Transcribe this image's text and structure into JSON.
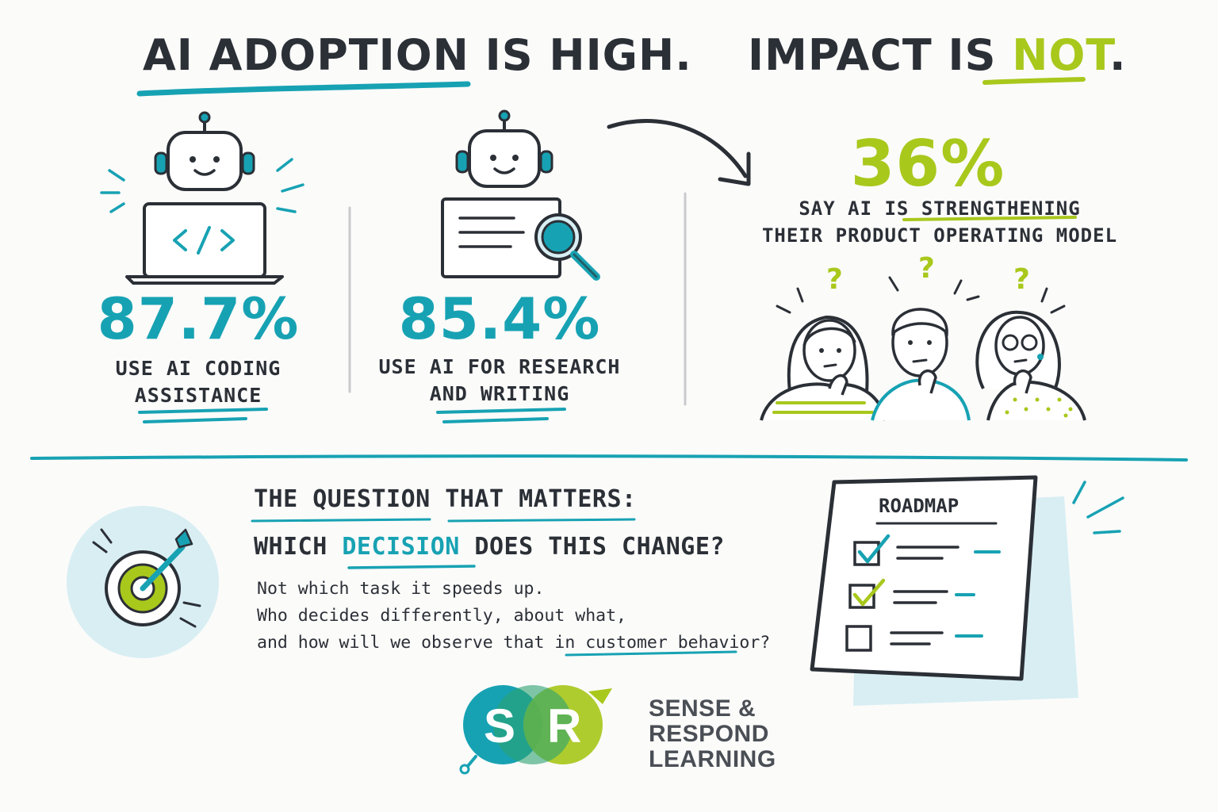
{
  "headline": {
    "part1": "AI ADOPTION IS HIGH.",
    "part2_prefix": "IMPACT IS ",
    "part2_emphasis": "NOT",
    "part2_suffix": "."
  },
  "stats": [
    {
      "value": "87.7%",
      "label_line1": "USE AI CODING",
      "label_line2": "ASSISTANCE",
      "icon": "robot-laptop-code-icon"
    },
    {
      "value": "85.4%",
      "label_line1": "USE AI FOR RESEARCH",
      "label_line2": "AND WRITING",
      "icon": "robot-document-search-icon"
    }
  ],
  "impact": {
    "value": "36%",
    "label_prefix": "SAY AI IS ",
    "label_emphasis": "STRENGTHENING",
    "label_line2": "THEIR PRODUCT OPERATING MODEL",
    "icon": "confused-people-icon"
  },
  "question": {
    "title": "THE QUESTION THAT MATTERS:",
    "prompt_prefix": "WHICH ",
    "prompt_emphasis": "DECISION",
    "prompt_suffix": " DOES THIS CHANGE?",
    "body_line1": "Not which task it speeds up.",
    "body_line2": "Who decides differently, about what,",
    "body_line3_prefix": "and how will we observe that in ",
    "body_line3_emphasis": "customer behavior",
    "body_line3_suffix": "?",
    "icon": "target-arrow-icon"
  },
  "roadmap": {
    "title": "ROADMAP",
    "items_checked": [
      true,
      true,
      false
    ],
    "icon": "checklist-icon"
  },
  "logo": {
    "letter1": "S",
    "letter2": "R",
    "line1": "SENSE &",
    "line2": "RESPOND",
    "line3": "LEARNING"
  },
  "colors": {
    "teal": "#17a2b3",
    "lime": "#a8c81c",
    "ink": "#2b2f36",
    "light_blue": "#d8eef3"
  }
}
